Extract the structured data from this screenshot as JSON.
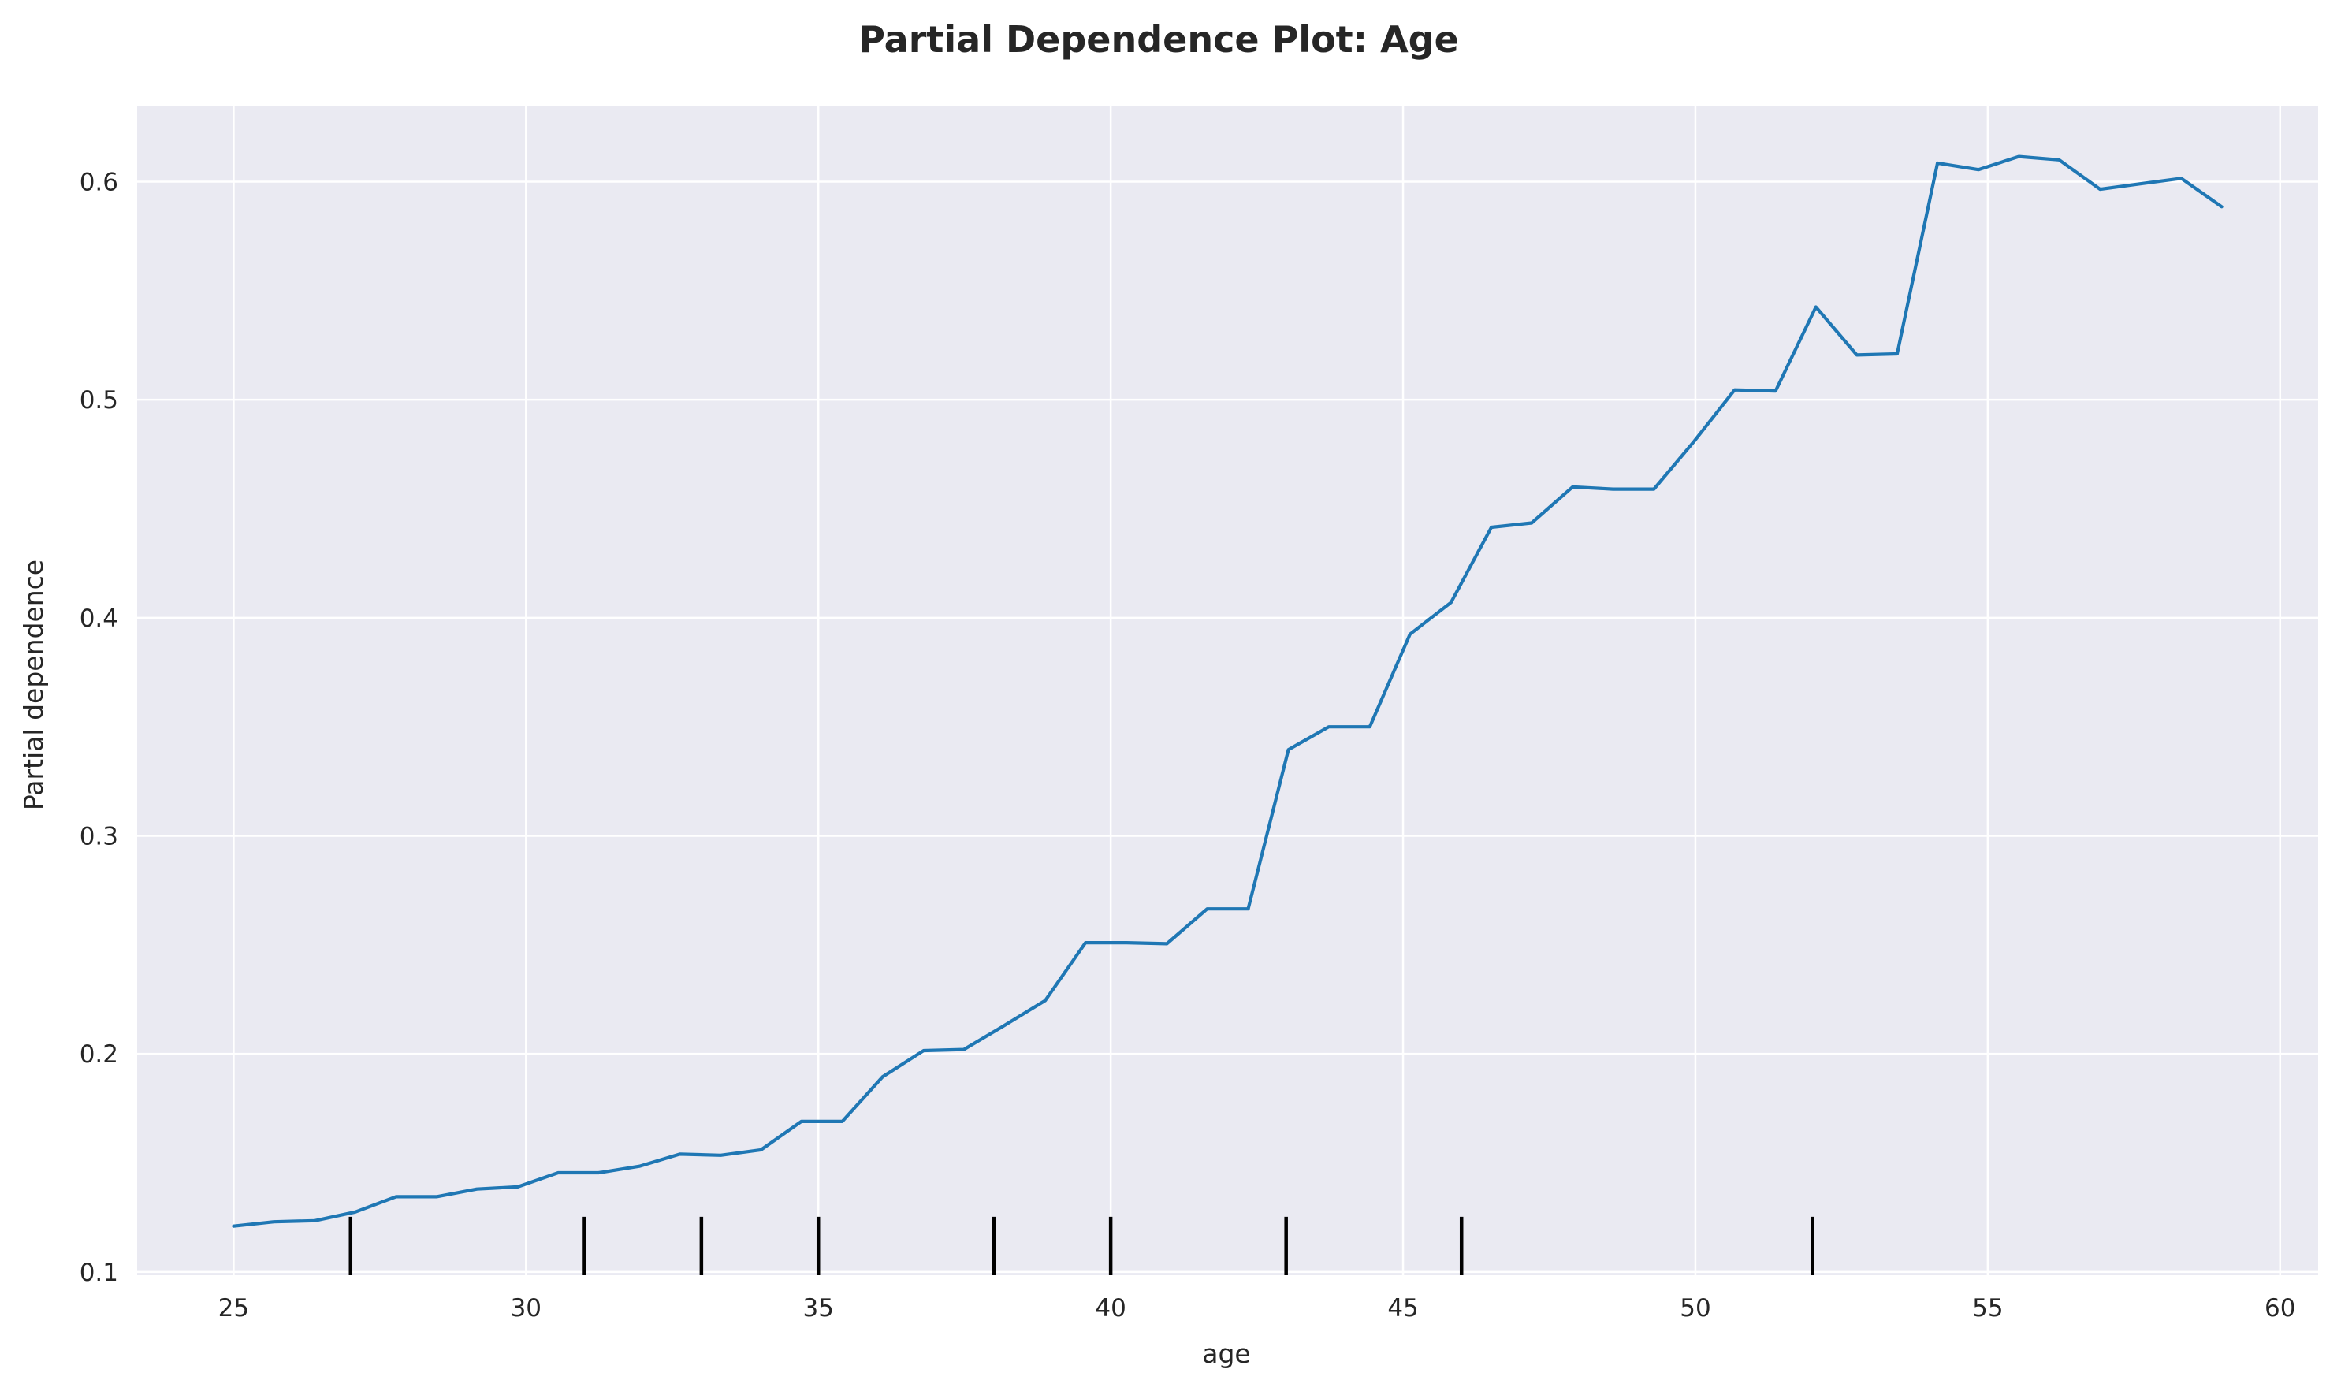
{
  "chart_data": {
    "type": "line",
    "title": "Partial Dependence Plot: Age",
    "xlabel": "age",
    "ylabel": "Partial dependence",
    "xlim": [
      23.35,
      60.65
    ],
    "ylim": [
      0.0985,
      0.6345
    ],
    "xticks": [
      25,
      30,
      35,
      40,
      45,
      50,
      55,
      60
    ],
    "yticks": [
      0.1,
      0.2,
      0.3,
      0.4,
      0.5,
      0.6
    ],
    "grid": true,
    "series": [
      {
        "color": "#1f77b4",
        "x": [
          25.0,
          25.69,
          26.39,
          27.08,
          27.78,
          28.47,
          29.16,
          29.86,
          30.55,
          31.24,
          31.94,
          32.63,
          33.33,
          34.02,
          34.71,
          35.41,
          36.1,
          36.8,
          37.49,
          38.18,
          38.88,
          39.57,
          40.27,
          40.96,
          41.65,
          42.35,
          43.04,
          43.73,
          44.43,
          45.12,
          45.82,
          46.51,
          47.2,
          47.9,
          48.59,
          49.29,
          49.98,
          50.67,
          51.37,
          52.06,
          52.76,
          53.45,
          54.14,
          54.84,
          55.53,
          56.22,
          56.92,
          57.61,
          58.31,
          59.0
        ],
        "y": [
          0.121,
          0.123,
          0.1235,
          0.1275,
          0.1345,
          0.1345,
          0.138,
          0.139,
          0.1455,
          0.1455,
          0.1485,
          0.154,
          0.1535,
          0.156,
          0.169,
          0.169,
          0.1895,
          0.2015,
          0.202,
          0.213,
          0.2245,
          0.251,
          0.251,
          0.2505,
          0.2665,
          0.2665,
          0.3395,
          0.35,
          0.35,
          0.3925,
          0.407,
          0.4415,
          0.4435,
          0.46,
          0.459,
          0.459,
          0.481,
          0.5045,
          0.504,
          0.5425,
          0.5205,
          0.521,
          0.6085,
          0.6055,
          0.6115,
          0.61,
          0.5965,
          0.599,
          0.6015,
          0.5885
        ]
      }
    ],
    "rug": [
      27,
      31,
      33,
      35,
      38,
      40,
      43,
      46,
      52
    ]
  }
}
